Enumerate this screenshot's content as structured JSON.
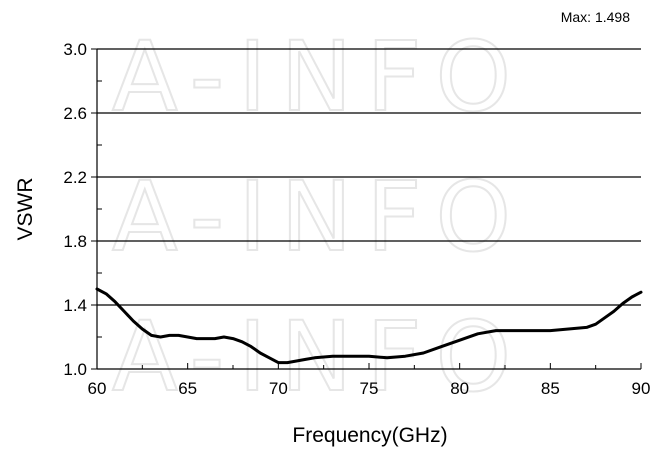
{
  "watermark": "A-INFO",
  "chart_data": {
    "type": "line",
    "title": "",
    "annotation": "Max: 1.498",
    "xlabel": "Frequency(GHz)",
    "ylabel": "VSWR",
    "xlim": [
      60,
      90
    ],
    "ylim": [
      1.0,
      3.0
    ],
    "x_ticks": [
      60,
      65,
      70,
      75,
      80,
      85,
      90
    ],
    "x_tick_labels": [
      "60",
      "65",
      "70",
      "75",
      "80",
      "85",
      "90"
    ],
    "y_ticks": [
      1.0,
      1.4,
      1.8,
      2.2,
      2.6,
      3.0
    ],
    "y_tick_labels": [
      "1.0",
      "1.4",
      "1.8",
      "2.2",
      "2.6",
      "3.0"
    ],
    "gridlines": "horizontal",
    "line_color": "#000000",
    "series": [
      {
        "x": [
          60,
          60.5,
          61,
          61.5,
          62,
          62.5,
          63,
          63.5,
          64,
          64.5,
          65,
          65.5,
          66,
          66.5,
          67,
          67.5,
          68,
          68.5,
          69,
          69.5,
          70,
          70.5,
          71,
          71.5,
          72,
          73,
          74,
          75,
          76,
          77,
          78,
          79,
          80,
          81,
          82,
          83,
          84,
          85,
          86,
          87,
          87.5,
          88,
          88.5,
          89,
          89.5,
          90
        ],
        "y": [
          1.5,
          1.47,
          1.42,
          1.36,
          1.3,
          1.25,
          1.21,
          1.2,
          1.21,
          1.21,
          1.2,
          1.19,
          1.19,
          1.19,
          1.2,
          1.19,
          1.17,
          1.14,
          1.1,
          1.07,
          1.04,
          1.04,
          1.05,
          1.06,
          1.07,
          1.08,
          1.08,
          1.08,
          1.07,
          1.08,
          1.1,
          1.14,
          1.18,
          1.22,
          1.24,
          1.24,
          1.24,
          1.24,
          1.25,
          1.26,
          1.28,
          1.32,
          1.36,
          1.41,
          1.45,
          1.48
        ]
      }
    ]
  }
}
